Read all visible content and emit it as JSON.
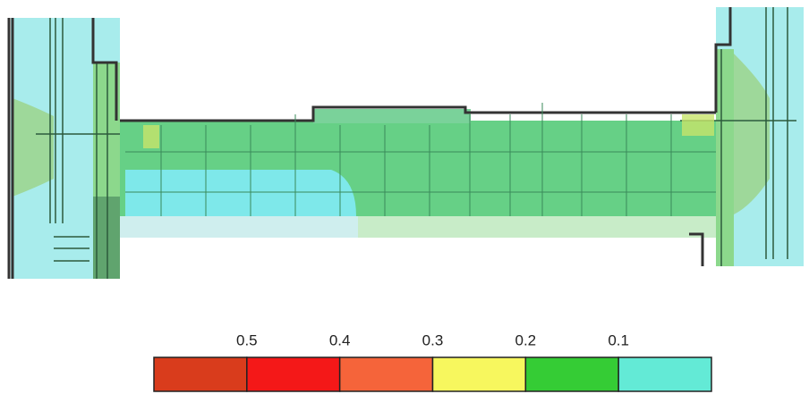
{
  "legend": {
    "ticks": [
      "0.5",
      "0.4",
      "0.3",
      "0.2",
      "0.1"
    ],
    "colors": [
      "#d93c1c",
      "#f41818",
      "#f5643a",
      "#f7f75e",
      "#35cc35",
      "#63ead6"
    ]
  }
}
